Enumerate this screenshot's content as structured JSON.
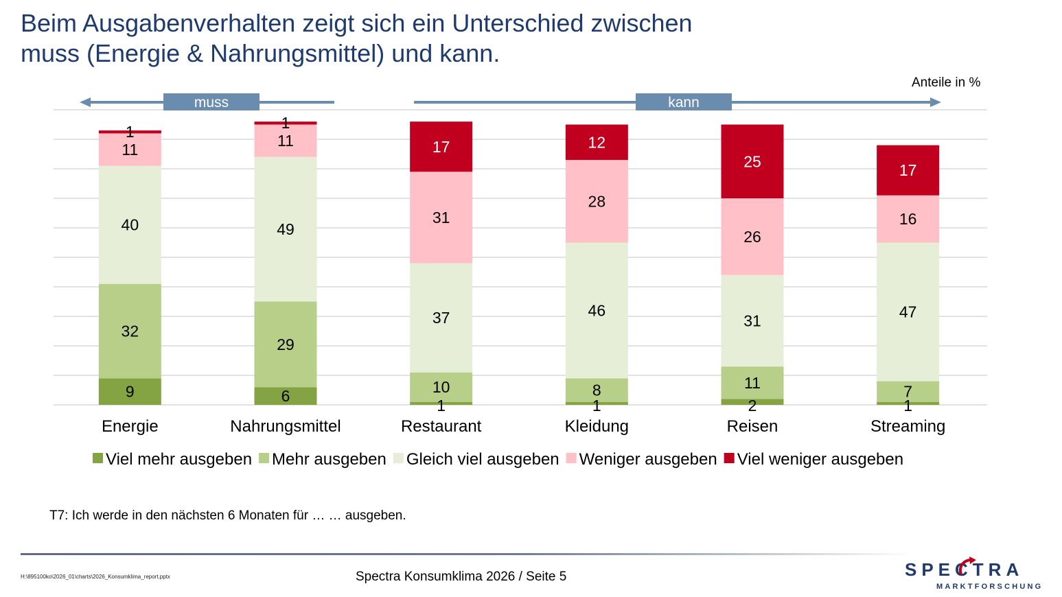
{
  "slide": {
    "title_line1": "Beim Ausgabenverhalten zeigt sich ein Unterschied zwischen",
    "title_line2": "muss (Energie & Nahrungsmittel) und kann.",
    "unit_label": "Anteile in %",
    "question": "T7: Ich werde in den nächsten 6 Monaten für … … ausgeben.",
    "file_path": "H:\\895100ko\\2026_01\\charts\\2026_Konsumklima_report.pptx",
    "page_info": "Spectra Konsumklima 2026  /  Seite 5",
    "logo_main": "SPECTRA",
    "logo_sub": "MARKTFORSCHUNG"
  },
  "groups": [
    {
      "label": "muss",
      "direction": "left",
      "categories": [
        "Energie",
        "Nahrungsmittel"
      ]
    },
    {
      "label": "kann",
      "direction": "right",
      "categories": [
        "Restaurant",
        "Kleidung",
        "Reisen",
        "Streaming"
      ]
    }
  ],
  "colors": {
    "title": "#1f3a6e",
    "group_banner": "#6a8caf",
    "grid": "#d9d9d9"
  },
  "chart_data": {
    "type": "bar",
    "stacked": true,
    "title": "Beim Ausgabenverhalten zeigt sich ein Unterschied zwischen muss (Energie & Nahrungsmittel) und kann.",
    "xlabel": "",
    "ylabel": "Anteile in %",
    "ylim": [
      0,
      100
    ],
    "grid": true,
    "legend_position": "bottom",
    "categories": [
      "Energie",
      "Nahrungsmittel",
      "Restaurant",
      "Kleidung",
      "Reisen",
      "Streaming"
    ],
    "series": [
      {
        "name": "Viel mehr ausgeben",
        "color": "#84a342",
        "label_color": "#000000",
        "values": [
          9,
          6,
          1,
          1,
          2,
          1
        ]
      },
      {
        "name": "Mehr ausgeben",
        "color": "#b8cf8a",
        "label_color": "#000000",
        "values": [
          32,
          29,
          10,
          8,
          11,
          7
        ]
      },
      {
        "name": "Gleich viel ausgeben",
        "color": "#e6eed7",
        "label_color": "#000000",
        "values": [
          40,
          49,
          37,
          46,
          31,
          47
        ]
      },
      {
        "name": "Weniger ausgeben",
        "color": "#ffc0c8",
        "label_color": "#000000",
        "values": [
          11,
          11,
          31,
          28,
          26,
          16
        ]
      },
      {
        "name": "Viel weniger ausgeben",
        "color": "#c0001e",
        "label_color": "#ffffff",
        "values": [
          1,
          1,
          17,
          12,
          25,
          17
        ]
      }
    ]
  }
}
